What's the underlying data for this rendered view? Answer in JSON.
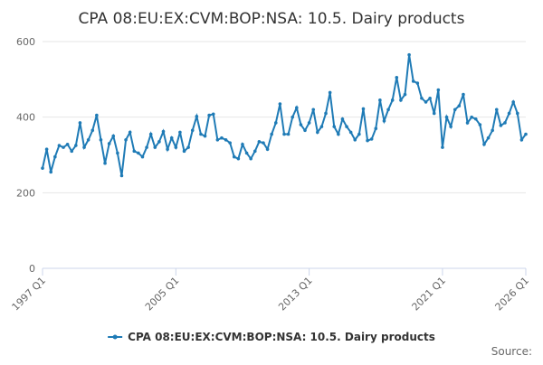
{
  "chart_data": {
    "type": "line",
    "title": "CPA 08:EU:EX:CVM:BOP:NSA: 10.5. Dairy products",
    "source": "Source:",
    "categories": [
      "1997 Q1",
      null,
      null,
      null,
      null,
      null,
      null,
      null,
      null,
      null,
      null,
      null,
      null,
      null,
      null,
      null,
      null,
      null,
      null,
      null,
      null,
      null,
      null,
      null,
      null,
      null,
      null,
      null,
      null,
      null,
      null,
      null,
      "2005 Q1",
      null,
      null,
      null,
      null,
      null,
      null,
      null,
      null,
      null,
      null,
      null,
      null,
      null,
      null,
      null,
      null,
      null,
      null,
      null,
      null,
      null,
      null,
      null,
      null,
      null,
      null,
      null,
      null,
      null,
      null,
      null,
      "2013 Q1",
      null,
      null,
      null,
      null,
      null,
      null,
      null,
      null,
      null,
      null,
      null,
      null,
      null,
      null,
      null,
      null,
      null,
      null,
      null,
      null,
      null,
      null,
      null,
      null,
      null,
      null,
      null,
      null,
      null,
      null,
      null,
      "2021 Q1",
      null,
      null,
      null,
      null,
      null,
      null,
      null,
      null,
      null,
      null,
      null,
      null,
      null,
      null,
      null,
      null,
      null,
      null,
      null,
      "2026 Q1"
    ],
    "series": [
      {
        "name": "CPA 08:EU:EX:CVM:BOP:NSA: 10.5. Dairy products",
        "color": "#1f7bb6",
        "values": [
          265,
          315,
          255,
          295,
          325,
          320,
          328,
          310,
          325,
          385,
          320,
          340,
          365,
          405,
          340,
          278,
          330,
          350,
          305,
          245,
          340,
          360,
          310,
          305,
          295,
          320,
          355,
          320,
          335,
          362,
          315,
          345,
          320,
          360,
          310,
          320,
          365,
          402,
          355,
          350,
          405,
          408,
          340,
          345,
          340,
          332,
          295,
          290,
          328,
          305,
          290,
          310,
          335,
          332,
          315,
          355,
          385,
          435,
          355,
          355,
          400,
          425,
          380,
          365,
          385,
          420,
          360,
          375,
          410,
          465,
          375,
          355,
          395,
          375,
          360,
          340,
          355,
          422,
          338,
          342,
          370,
          445,
          390,
          420,
          445,
          505,
          445,
          460,
          565,
          495,
          490,
          450,
          440,
          450,
          410,
          472,
          320,
          400,
          375,
          420,
          430,
          460,
          385,
          400,
          395,
          380,
          328,
          345,
          365,
          420,
          378,
          385,
          410,
          440,
          410,
          340,
          355
        ]
      }
    ],
    "ylim": [
      0,
      600
    ],
    "yticks": [
      0,
      200,
      400,
      600
    ],
    "grid": true
  }
}
